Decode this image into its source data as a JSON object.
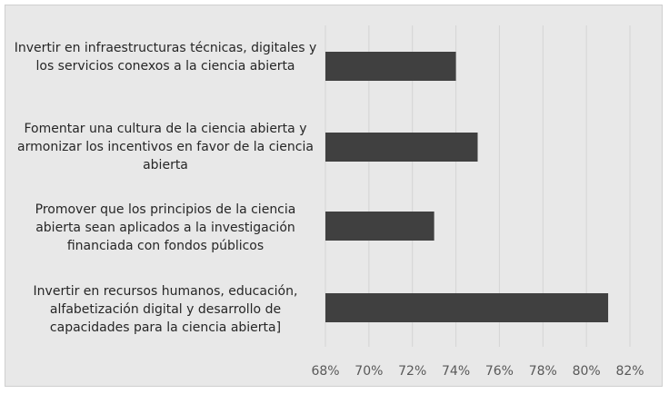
{
  "chart_data": {
    "type": "bar",
    "orientation": "horizontal",
    "categories": [
      "Invertir en infraestructuras técnicas, digitales y los servicios conexos a la ciencia abierta",
      "Fomentar una cultura de la ciencia abierta y armonizar los incentivos en favor de la ciencia abierta",
      "Promover que los principios de la ciencia abierta sean aplicados a la investigación financiada con fondos públicos",
      "Invertir en recursos humanos, educación, alfabetización digital y desarrollo de capacidades para la ciencia abierta]"
    ],
    "values": [
      74,
      75,
      73,
      81
    ],
    "xlim": [
      68,
      82
    ],
    "x_ticks": [
      68,
      70,
      72,
      74,
      76,
      78,
      80,
      82
    ],
    "tick_suffix": "%",
    "grid": true,
    "legend": "none",
    "bar_color": "#404040",
    "grid_color": "#d4d4d4",
    "background_color": "#e8e8e8"
  }
}
